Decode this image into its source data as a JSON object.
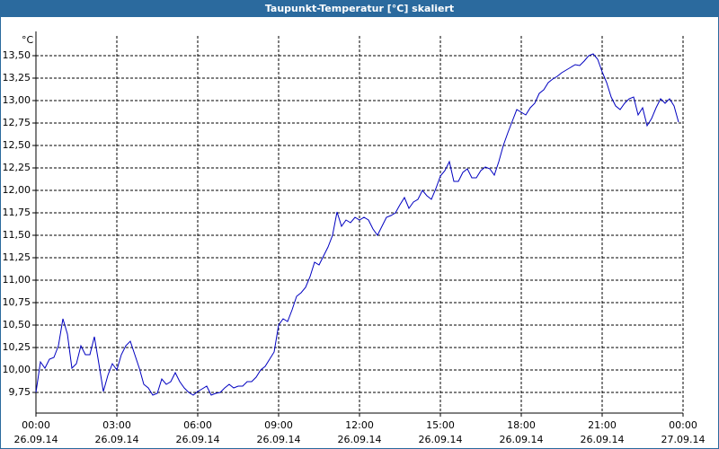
{
  "chart_data": {
    "type": "line",
    "title": "Taupunkt-Temperatur [°C] skaliert",
    "y_label": "°C",
    "color": "#0000c0",
    "grid": true,
    "xlim": [
      0,
      1440
    ],
    "ylim": [
      9.52,
      13.72
    ],
    "xticks": [
      {
        "value": 0,
        "label": [
          "00:00",
          "26.09.14"
        ]
      },
      {
        "value": 180,
        "label": [
          "03:00",
          "26.09.14"
        ]
      },
      {
        "value": 360,
        "label": [
          "06:00",
          "26.09.14"
        ]
      },
      {
        "value": 540,
        "label": [
          "09:00",
          "26.09.14"
        ]
      },
      {
        "value": 720,
        "label": [
          "12:00",
          "26.09.14"
        ]
      },
      {
        "value": 900,
        "label": [
          "15:00",
          "26.09.14"
        ]
      },
      {
        "value": 1080,
        "label": [
          "18:00",
          "26.09.14"
        ]
      },
      {
        "value": 1260,
        "label": [
          "21:00",
          "26.09.14"
        ]
      },
      {
        "value": 1440,
        "label": [
          "00:00",
          "27.09.14"
        ]
      }
    ],
    "yticks": [
      {
        "value": 9.75,
        "label": "9,75"
      },
      {
        "value": 10,
        "label": "10,00"
      },
      {
        "value": 10.25,
        "label": "10,25"
      },
      {
        "value": 10.5,
        "label": "10,50"
      },
      {
        "value": 10.75,
        "label": "10,75"
      },
      {
        "value": 11,
        "label": "11,00"
      },
      {
        "value": 11.25,
        "label": "11,25"
      },
      {
        "value": 11.5,
        "label": "11,50"
      },
      {
        "value": 11.75,
        "label": "11,75"
      },
      {
        "value": 12,
        "label": "12,00"
      },
      {
        "value": 12.25,
        "label": "12,25"
      },
      {
        "value": 12.5,
        "label": "12,50"
      },
      {
        "value": 12.75,
        "label": "12,75"
      },
      {
        "value": 13,
        "label": "13,00"
      },
      {
        "value": 13.25,
        "label": "13,25"
      },
      {
        "value": 13.5,
        "label": "13,50"
      }
    ],
    "x": [
      0,
      10,
      20,
      30,
      40,
      50,
      60,
      70,
      80,
      90,
      100,
      110,
      120,
      130,
      140,
      150,
      160,
      170,
      180,
      190,
      200,
      210,
      220,
      230,
      240,
      250,
      260,
      270,
      280,
      290,
      300,
      310,
      320,
      330,
      340,
      350,
      360,
      370,
      380,
      390,
      400,
      410,
      420,
      430,
      440,
      450,
      460,
      470,
      480,
      490,
      500,
      510,
      520,
      530,
      540,
      550,
      560,
      570,
      580,
      590,
      600,
      610,
      620,
      630,
      640,
      650,
      660,
      670,
      680,
      690,
      700,
      710,
      720,
      730,
      740,
      750,
      760,
      770,
      780,
      790,
      800,
      810,
      820,
      830,
      840,
      850,
      860,
      870,
      880,
      890,
      900,
      910,
      920,
      930,
      940,
      950,
      960,
      970,
      980,
      990,
      1000,
      1010,
      1020,
      1030,
      1040,
      1050,
      1060,
      1070,
      1080,
      1090,
      1100,
      1110,
      1120,
      1130,
      1140,
      1150,
      1160,
      1170,
      1180,
      1190,
      1200,
      1210,
      1220,
      1230,
      1240,
      1250,
      1260,
      1270,
      1280,
      1290,
      1300,
      1310,
      1320,
      1330,
      1340,
      1350,
      1360,
      1370,
      1380,
      1390,
      1400,
      1410,
      1420,
      1430
    ],
    "values": [
      9.75,
      10.09,
      10.02,
      10.12,
      10.14,
      10.27,
      10.57,
      10.4,
      10.02,
      10.07,
      10.27,
      10.17,
      10.17,
      10.37,
      10.07,
      9.76,
      9.94,
      10.07,
      10.0,
      10.17,
      10.27,
      10.32,
      10.17,
      10.02,
      9.84,
      9.8,
      9.72,
      9.74,
      9.9,
      9.84,
      9.87,
      9.97,
      9.87,
      9.8,
      9.75,
      9.72,
      9.76,
      9.79,
      9.82,
      9.72,
      9.74,
      9.75,
      9.8,
      9.84,
      9.8,
      9.82,
      9.82,
      9.87,
      9.87,
      9.92,
      10.0,
      10.04,
      10.12,
      10.2,
      10.5,
      10.57,
      10.54,
      10.67,
      10.82,
      10.86,
      10.92,
      11.04,
      11.2,
      11.17,
      11.27,
      11.37,
      11.5,
      11.76,
      11.6,
      11.67,
      11.64,
      11.7,
      11.67,
      11.7,
      11.67,
      11.57,
      11.5,
      11.6,
      11.7,
      11.72,
      11.75,
      11.84,
      11.92,
      11.8,
      11.87,
      11.9,
      12.0,
      11.94,
      11.9,
      12.02,
      12.16,
      12.22,
      12.32,
      12.1,
      12.1,
      12.2,
      12.24,
      12.14,
      12.14,
      12.22,
      12.26,
      12.24,
      12.17,
      12.32,
      12.5,
      12.64,
      12.77,
      12.9,
      12.87,
      12.84,
      12.92,
      12.97,
      13.08,
      13.12,
      13.2,
      13.24,
      13.27,
      13.31,
      13.34,
      13.37,
      13.4,
      13.39,
      13.44,
      13.5,
      13.52,
      13.46,
      13.32,
      13.2,
      13.04,
      12.94,
      12.9,
      12.97,
      13.02,
      13.04,
      12.84,
      12.92,
      12.72,
      12.8,
      12.92,
      13.02,
      12.97,
      13.02,
      12.94,
      12.76
    ]
  }
}
